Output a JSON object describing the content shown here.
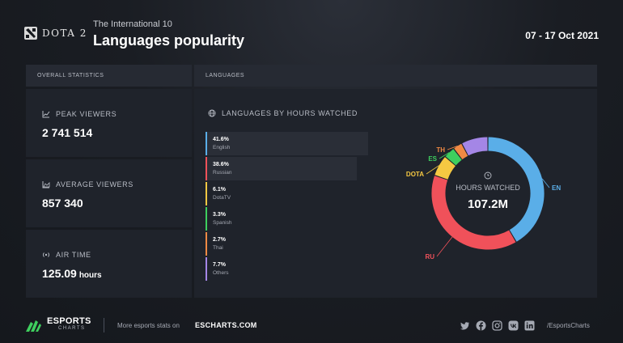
{
  "header": {
    "logo_text": "DOTA 2",
    "event": "The International 10",
    "title": "Languages popularity",
    "dates": "07 - 17 Oct 2021"
  },
  "sections": {
    "overall": "OVERALL STATISTICS",
    "languages": "LANGUAGES"
  },
  "stats": [
    {
      "label": "PEAK VIEWERS",
      "value": "2 741 514",
      "unit": "",
      "icon": "chart-icon"
    },
    {
      "label": "AVERAGE VIEWERS",
      "value": "857 340",
      "unit": "",
      "icon": "area-chart-icon"
    },
    {
      "label": "AIR TIME",
      "value": "125.09",
      "unit": "hours",
      "icon": "broadcast-icon"
    }
  ],
  "languages_title": "LANGUAGES BY HOURS WATCHED",
  "bars": [
    {
      "pct": "41.6%",
      "name": "English",
      "value": 41.6,
      "color": "#5aaee8"
    },
    {
      "pct": "38.6%",
      "name": "Russian",
      "value": 38.6,
      "color": "#f0515a"
    },
    {
      "pct": "6.1%",
      "name": "DotaTV",
      "value": 6.1,
      "color": "#f5c842"
    },
    {
      "pct": "3.3%",
      "name": "Spanish",
      "value": 3.3,
      "color": "#3ecf5e"
    },
    {
      "pct": "2.7%",
      "name": "Thai",
      "value": 2.7,
      "color": "#f08a44"
    },
    {
      "pct": "7.7%",
      "name": "Others",
      "value": 7.7,
      "color": "#a486e6"
    }
  ],
  "donut": {
    "title": "HOURS WATCHED",
    "total": "107.2M",
    "labels": [
      "EN",
      "RU",
      "DOTA",
      "ES",
      "TH"
    ]
  },
  "footer": {
    "brand": "ESPORTS",
    "brand_sub": "CHARTS",
    "more": "More esports stats on",
    "site": "ESCHARTS.COM",
    "handle": "/EsportsCharts",
    "socials": [
      "twitter-icon",
      "facebook-icon",
      "instagram-icon",
      "vk-icon",
      "linkedin-icon"
    ]
  }
}
